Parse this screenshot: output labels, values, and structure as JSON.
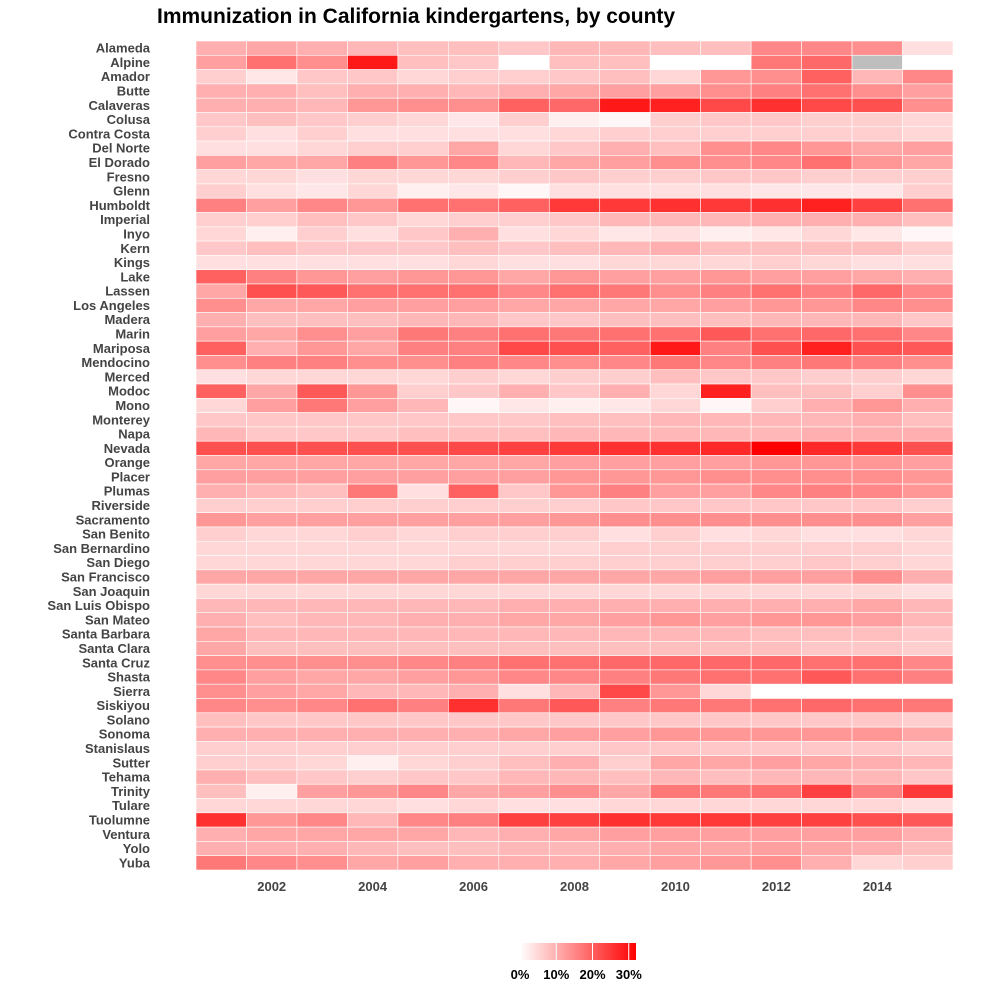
{
  "chart_data": {
    "type": "heatmap",
    "title": "Immunization in California kindergartens, by county",
    "xlabel": "",
    "ylabel": "",
    "years": [
      2001,
      2002,
      2003,
      2004,
      2005,
      2006,
      2007,
      2008,
      2009,
      2010,
      2011,
      2012,
      2013,
      2014,
      2015
    ],
    "x_ticks": [
      "2002",
      "2004",
      "2006",
      "2008",
      "2010",
      "2012",
      "2014"
    ],
    "counties": [
      "Alameda",
      "Alpine",
      "Amador",
      "Butte",
      "Calaveras",
      "Colusa",
      "Contra Costa",
      "Del Norte",
      "El Dorado",
      "Fresno",
      "Glenn",
      "Humboldt",
      "Imperial",
      "Inyo",
      "Kern",
      "Kings",
      "Lake",
      "Lassen",
      "Los Angeles",
      "Madera",
      "Marin",
      "Mariposa",
      "Mendocino",
      "Merced",
      "Modoc",
      "Mono",
      "Monterey",
      "Napa",
      "Nevada",
      "Orange",
      "Placer",
      "Plumas",
      "Riverside",
      "Sacramento",
      "San Benito",
      "San Bernardino",
      "San Diego",
      "San Francisco",
      "San Joaquin",
      "San Luis Obispo",
      "San Mateo",
      "Santa Barbara",
      "Santa Clara",
      "Santa Cruz",
      "Shasta",
      "Sierra",
      "Siskiyou",
      "Solano",
      "Sonoma",
      "Stanislaus",
      "Sutter",
      "Tehama",
      "Trinity",
      "Tulare",
      "Tuolumne",
      "Ventura",
      "Yolo",
      "Yuba"
    ],
    "values": [
      [
        10,
        11,
        10,
        9,
        8,
        8,
        7,
        9,
        9,
        8,
        8,
        15,
        15,
        14,
        4
      ],
      [
        12,
        18,
        14,
        29,
        8,
        7,
        0,
        8,
        8,
        0,
        0,
        17,
        19,
        null,
        0
      ],
      [
        6,
        3,
        7,
        7,
        5,
        6,
        6,
        7,
        8,
        5,
        13,
        14,
        20,
        9,
        15
      ],
      [
        10,
        10,
        8,
        10,
        10,
        9,
        10,
        11,
        12,
        12,
        14,
        16,
        18,
        14,
        12
      ],
      [
        10,
        10,
        9,
        13,
        14,
        14,
        20,
        19,
        29,
        28,
        23,
        26,
        23,
        22,
        14
      ],
      [
        7,
        8,
        7,
        6,
        5,
        3,
        6,
        2,
        1,
        6,
        7,
        7,
        6,
        6,
        5
      ],
      [
        6,
        4,
        6,
        4,
        4,
        4,
        4,
        5,
        6,
        6,
        6,
        6,
        6,
        6,
        5
      ],
      [
        4,
        4,
        5,
        6,
        6,
        11,
        5,
        7,
        10,
        8,
        14,
        15,
        13,
        11,
        12
      ],
      [
        12,
        11,
        11,
        16,
        13,
        15,
        9,
        11,
        12,
        14,
        14,
        15,
        18,
        13,
        11
      ],
      [
        5,
        5,
        4,
        5,
        5,
        5,
        6,
        7,
        6,
        6,
        7,
        7,
        6,
        6,
        6
      ],
      [
        6,
        4,
        3,
        5,
        2,
        3,
        1,
        4,
        4,
        4,
        4,
        3,
        3,
        3,
        6
      ],
      [
        16,
        12,
        15,
        13,
        18,
        18,
        20,
        25,
        25,
        26,
        25,
        26,
        28,
        24,
        18
      ],
      [
        6,
        6,
        8,
        7,
        5,
        6,
        6,
        7,
        9,
        9,
        9,
        10,
        10,
        10,
        8
      ],
      [
        5,
        2,
        6,
        4,
        7,
        10,
        4,
        5,
        3,
        4,
        2,
        3,
        5,
        3,
        1
      ],
      [
        7,
        8,
        7,
        7,
        7,
        8,
        7,
        8,
        9,
        10,
        8,
        8,
        8,
        8,
        6
      ],
      [
        4,
        4,
        4,
        4,
        4,
        5,
        4,
        4,
        5,
        5,
        5,
        6,
        5,
        4,
        4
      ],
      [
        20,
        16,
        13,
        12,
        13,
        13,
        11,
        13,
        12,
        12,
        13,
        12,
        12,
        11,
        10
      ],
      [
        11,
        22,
        21,
        18,
        18,
        18,
        15,
        18,
        17,
        14,
        16,
        18,
        16,
        19,
        15
      ],
      [
        14,
        11,
        11,
        12,
        12,
        12,
        11,
        11,
        11,
        11,
        12,
        13,
        13,
        15,
        14
      ],
      [
        10,
        8,
        8,
        8,
        9,
        9,
        7,
        7,
        8,
        8,
        8,
        9,
        9,
        9,
        7
      ],
      [
        12,
        11,
        14,
        12,
        17,
        16,
        18,
        17,
        18,
        18,
        21,
        18,
        19,
        18,
        15
      ],
      [
        20,
        10,
        13,
        11,
        16,
        16,
        23,
        22,
        20,
        29,
        16,
        22,
        28,
        22,
        21
      ],
      [
        14,
        16,
        16,
        14,
        14,
        16,
        15,
        14,
        15,
        17,
        15,
        16,
        17,
        16,
        14
      ],
      [
        4,
        5,
        5,
        5,
        5,
        6,
        5,
        6,
        6,
        8,
        7,
        7,
        6,
        6,
        5
      ],
      [
        20,
        11,
        21,
        13,
        6,
        7,
        10,
        7,
        10,
        5,
        28,
        8,
        8,
        6,
        14
      ],
      [
        5,
        12,
        17,
        12,
        9,
        1,
        3,
        2,
        3,
        5,
        1,
        6,
        10,
        13,
        10
      ],
      [
        7,
        7,
        7,
        7,
        7,
        7,
        7,
        8,
        8,
        9,
        9,
        9,
        9,
        10,
        8
      ],
      [
        9,
        7,
        7,
        7,
        8,
        8,
        8,
        9,
        9,
        9,
        9,
        9,
        10,
        10,
        10
      ],
      [
        22,
        22,
        22,
        22,
        22,
        23,
        24,
        25,
        26,
        26,
        27,
        32,
        27,
        25,
        22
      ],
      [
        11,
        11,
        11,
        11,
        11,
        11,
        11,
        12,
        12,
        12,
        12,
        13,
        13,
        13,
        12
      ],
      [
        12,
        12,
        12,
        12,
        12,
        12,
        12,
        13,
        13,
        13,
        14,
        14,
        14,
        14,
        13
      ],
      [
        10,
        9,
        8,
        17,
        4,
        20,
        7,
        13,
        16,
        12,
        12,
        15,
        16,
        15,
        13
      ],
      [
        6,
        6,
        6,
        6,
        6,
        6,
        6,
        6,
        7,
        7,
        7,
        7,
        7,
        7,
        6
      ],
      [
        13,
        12,
        12,
        12,
        12,
        12,
        12,
        13,
        14,
        14,
        14,
        14,
        14,
        14,
        12
      ],
      [
        6,
        5,
        5,
        6,
        5,
        6,
        6,
        6,
        4,
        6,
        4,
        5,
        4,
        4,
        5
      ],
      [
        5,
        5,
        5,
        5,
        5,
        5,
        5,
        5,
        6,
        6,
        6,
        6,
        6,
        6,
        5
      ],
      [
        5,
        5,
        5,
        5,
        5,
        6,
        6,
        6,
        6,
        6,
        6,
        6,
        7,
        6,
        5
      ],
      [
        11,
        11,
        11,
        11,
        11,
        11,
        11,
        11,
        11,
        11,
        12,
        12,
        12,
        14,
        10
      ],
      [
        5,
        5,
        5,
        5,
        5,
        5,
        5,
        5,
        5,
        5,
        5,
        5,
        5,
        5,
        4
      ],
      [
        9,
        9,
        9,
        9,
        9,
        9,
        10,
        10,
        10,
        10,
        10,
        10,
        10,
        11,
        9
      ],
      [
        10,
        8,
        9,
        9,
        10,
        10,
        11,
        11,
        12,
        13,
        12,
        13,
        13,
        12,
        9
      ],
      [
        11,
        9,
        9,
        9,
        9,
        9,
        9,
        9,
        9,
        9,
        9,
        8,
        8,
        8,
        7
      ],
      [
        11,
        8,
        8,
        8,
        8,
        8,
        8,
        8,
        8,
        8,
        8,
        8,
        7,
        7,
        6
      ],
      [
        14,
        14,
        14,
        14,
        15,
        16,
        18,
        18,
        19,
        19,
        19,
        19,
        18,
        18,
        15
      ],
      [
        15,
        12,
        11,
        11,
        12,
        13,
        15,
        15,
        16,
        17,
        18,
        18,
        21,
        18,
        16
      ],
      [
        14,
        12,
        11,
        9,
        9,
        10,
        4,
        9,
        23,
        13,
        5,
        0,
        0,
        0,
        0
      ],
      [
        15,
        14,
        15,
        18,
        16,
        26,
        17,
        21,
        16,
        17,
        17,
        18,
        19,
        18,
        17
      ],
      [
        8,
        7,
        7,
        7,
        7,
        7,
        7,
        7,
        7,
        7,
        7,
        7,
        7,
        7,
        6
      ],
      [
        10,
        10,
        10,
        10,
        10,
        10,
        11,
        12,
        12,
        13,
        13,
        13,
        13,
        13,
        11
      ],
      [
        6,
        6,
        6,
        6,
        6,
        6,
        6,
        6,
        7,
        7,
        7,
        7,
        7,
        7,
        6
      ],
      [
        6,
        6,
        5,
        2,
        5,
        6,
        8,
        10,
        6,
        11,
        11,
        12,
        11,
        10,
        9
      ],
      [
        10,
        8,
        7,
        6,
        7,
        7,
        9,
        9,
        8,
        9,
        8,
        9,
        9,
        9,
        7
      ],
      [
        8,
        2,
        12,
        13,
        15,
        11,
        12,
        14,
        11,
        17,
        17,
        18,
        24,
        16,
        25
      ],
      [
        5,
        5,
        5,
        5,
        4,
        5,
        4,
        4,
        5,
        5,
        5,
        5,
        5,
        5,
        4
      ],
      [
        26,
        13,
        15,
        9,
        15,
        16,
        24,
        24,
        26,
        25,
        25,
        24,
        24,
        22,
        21
      ],
      [
        10,
        11,
        11,
        11,
        11,
        9,
        10,
        11,
        12,
        12,
        12,
        12,
        12,
        12,
        10
      ],
      [
        10,
        10,
        10,
        9,
        8,
        8,
        9,
        9,
        10,
        11,
        11,
        12,
        11,
        10,
        8
      ],
      [
        17,
        15,
        14,
        11,
        12,
        10,
        10,
        10,
        11,
        12,
        13,
        14,
        10,
        5,
        6
      ]
    ],
    "missing_color": "#bebebe",
    "color_low": "#ffffff",
    "color_high": "#ff0000",
    "color_range": [
      0,
      32
    ],
    "legend": {
      "position": "bottom",
      "ticks": [
        "0%",
        "10%",
        "20%",
        "30%"
      ],
      "tick_values": [
        0,
        10,
        20,
        30
      ]
    }
  }
}
